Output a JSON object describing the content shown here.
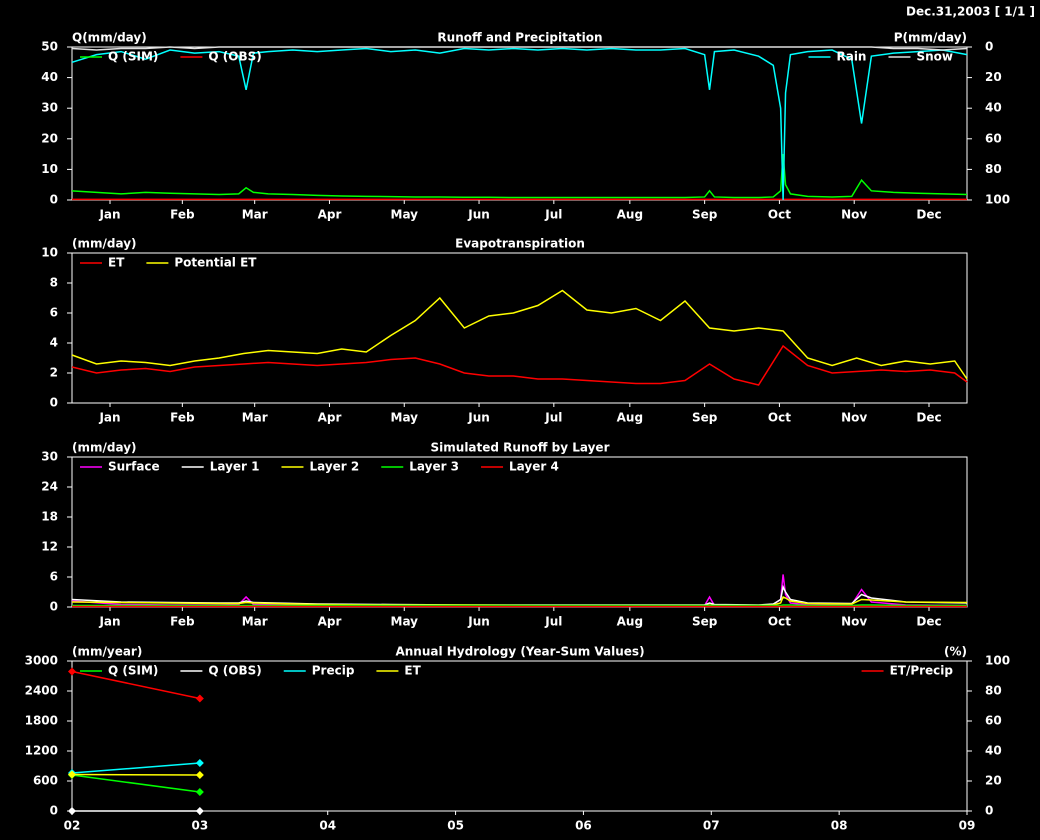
{
  "header": {
    "date": "Dec.31,2003 [ 1/1 ]"
  },
  "chart_data": [
    {
      "type": "line",
      "title": "Runoff and Precipitation",
      "ylabel": "Q(mm/day)",
      "y2label": "P(mm/day)",
      "x": [
        0,
        10,
        20,
        30,
        40,
        50,
        60,
        68,
        71,
        74,
        80,
        90,
        100,
        110,
        120,
        130,
        140,
        150,
        160,
        170,
        180,
        190,
        200,
        210,
        220,
        230,
        240,
        250,
        258,
        260,
        262,
        270,
        280,
        286,
        289,
        290,
        291,
        293,
        300,
        310,
        318,
        322,
        326,
        335,
        345,
        355,
        365
      ],
      "xlim": [
        0,
        365
      ],
      "xticks": [
        {
          "value": 15.5,
          "label": "Jan"
        },
        {
          "value": 45,
          "label": "Feb"
        },
        {
          "value": 74.5,
          "label": "Mar"
        },
        {
          "value": 105,
          "label": "Apr"
        },
        {
          "value": 135.5,
          "label": "May"
        },
        {
          "value": 166,
          "label": "Jun"
        },
        {
          "value": 196.5,
          "label": "Jul"
        },
        {
          "value": 227.5,
          "label": "Aug"
        },
        {
          "value": 258,
          "label": "Sep"
        },
        {
          "value": 288.5,
          "label": "Oct"
        },
        {
          "value": 319,
          "label": "Nov"
        },
        {
          "value": 349.5,
          "label": "Dec"
        }
      ],
      "ylim": [
        0,
        50
      ],
      "yticks": [
        0,
        10,
        20,
        30,
        40,
        50
      ],
      "y2lim": [
        100,
        0
      ],
      "y2ticks": [
        0,
        20,
        40,
        60,
        80,
        100
      ],
      "series": [
        {
          "name": "Q (SIM)",
          "color": "#00ff00",
          "values": [
            3,
            2.5,
            2,
            2.5,
            2.2,
            2,
            1.8,
            2,
            4,
            2.5,
            2,
            1.8,
            1.5,
            1.3,
            1.2,
            1.1,
            1,
            1,
            0.9,
            0.9,
            0.8,
            0.8,
            0.8,
            0.8,
            0.8,
            0.8,
            0.8,
            0.8,
            1,
            3,
            1,
            0.8,
            0.8,
            1,
            3,
            15,
            5,
            2,
            1.2,
            1,
            1.2,
            6.5,
            3,
            2.5,
            2.2,
            2,
            1.8
          ]
        },
        {
          "name": "Q (OBS)",
          "color": "#ff0000",
          "values": [
            0.2,
            0.2,
            0.2,
            0.2,
            0.2,
            0.2,
            0.2,
            0.2,
            0.2,
            0.2,
            0.2,
            0.2,
            0.2,
            0.2,
            0.2,
            0.2,
            0.2,
            0.2,
            0.2,
            0.2,
            0.2,
            0.2,
            0.2,
            0.2,
            0.2,
            0.2,
            0.2,
            0.2,
            0.2,
            0.2,
            0.2,
            0.2,
            0.2,
            0.2,
            0.2,
            0.2,
            0.2,
            0.2,
            0.2,
            0.2,
            0.2,
            0.2,
            0.2,
            0.2,
            0.2,
            0.2,
            0.2
          ]
        },
        {
          "name": "Rain",
          "color": "#00ffff",
          "axis": "y2",
          "values": [
            10,
            5,
            3,
            8,
            2,
            4,
            3,
            6,
            28,
            4,
            3,
            2,
            3,
            2,
            1,
            3,
            2,
            4,
            1,
            2,
            1,
            2,
            1,
            2,
            1,
            2,
            2,
            1,
            5,
            28,
            3,
            2,
            6,
            12,
            40,
            100,
            30,
            5,
            3,
            2,
            8,
            50,
            6,
            4,
            3,
            2,
            5
          ]
        },
        {
          "name": "Snow",
          "color": "#e0e0e0",
          "axis": "y2",
          "values": [
            1,
            2,
            1,
            1,
            0,
            1,
            0,
            0,
            0,
            0,
            0,
            0,
            0,
            0,
            0,
            0,
            0,
            0,
            0,
            0,
            0,
            0,
            0,
            0,
            0,
            0,
            0,
            0,
            0,
            0,
            0,
            0,
            0,
            0,
            0,
            0,
            0,
            0,
            0,
            0,
            0,
            0,
            0,
            1,
            1,
            2,
            1
          ]
        }
      ]
    },
    {
      "type": "line",
      "title": "Evapotranspiration",
      "ylabel": "(mm/day)",
      "x": [
        0,
        10,
        20,
        30,
        40,
        50,
        60,
        70,
        80,
        90,
        100,
        110,
        120,
        130,
        140,
        150,
        160,
        170,
        180,
        190,
        200,
        210,
        220,
        230,
        240,
        250,
        260,
        270,
        280,
        290,
        300,
        310,
        320,
        330,
        340,
        350,
        360,
        365
      ],
      "xlim": [
        0,
        365
      ],
      "xticks": [
        {
          "value": 15.5,
          "label": "Jan"
        },
        {
          "value": 45,
          "label": "Feb"
        },
        {
          "value": 74.5,
          "label": "Mar"
        },
        {
          "value": 105,
          "label": "Apr"
        },
        {
          "value": 135.5,
          "label": "May"
        },
        {
          "value": 166,
          "label": "Jun"
        },
        {
          "value": 196.5,
          "label": "Jul"
        },
        {
          "value": 227.5,
          "label": "Aug"
        },
        {
          "value": 258,
          "label": "Sep"
        },
        {
          "value": 288.5,
          "label": "Oct"
        },
        {
          "value": 319,
          "label": "Nov"
        },
        {
          "value": 349.5,
          "label": "Dec"
        }
      ],
      "ylim": [
        0,
        10
      ],
      "yticks": [
        0,
        2,
        4,
        6,
        8,
        10
      ],
      "series": [
        {
          "name": "ET",
          "color": "#ff0000",
          "values": [
            2.4,
            2.0,
            2.2,
            2.3,
            2.1,
            2.4,
            2.5,
            2.6,
            2.7,
            2.6,
            2.5,
            2.6,
            2.7,
            2.9,
            3.0,
            2.6,
            2.0,
            1.8,
            1.8,
            1.6,
            1.6,
            1.5,
            1.4,
            1.3,
            1.3,
            1.5,
            2.6,
            1.6,
            1.2,
            3.8,
            2.5,
            2.0,
            2.1,
            2.2,
            2.1,
            2.2,
            2.0,
            1.4
          ]
        },
        {
          "name": "Potential ET",
          "color": "#ffff00",
          "values": [
            3.2,
            2.6,
            2.8,
            2.7,
            2.5,
            2.8,
            3.0,
            3.3,
            3.5,
            3.4,
            3.3,
            3.6,
            3.4,
            4.5,
            5.5,
            7.0,
            5.0,
            5.8,
            6.0,
            6.5,
            7.5,
            6.2,
            6.0,
            6.3,
            5.5,
            6.8,
            5.0,
            4.8,
            5.0,
            4.8,
            3.0,
            2.5,
            3.0,
            2.5,
            2.8,
            2.6,
            2.8,
            1.6
          ]
        }
      ]
    },
    {
      "type": "line",
      "title": "Simulated Runoff by Layer",
      "ylabel": "(mm/day)",
      "x": [
        0,
        20,
        40,
        60,
        68,
        71,
        74,
        100,
        130,
        160,
        190,
        220,
        250,
        258,
        260,
        262,
        280,
        286,
        289,
        290,
        291,
        293,
        300,
        318,
        322,
        326,
        340,
        365
      ],
      "xlim": [
        0,
        365
      ],
      "xticks": [
        {
          "value": 15.5,
          "label": "Jan"
        },
        {
          "value": 45,
          "label": "Feb"
        },
        {
          "value": 74.5,
          "label": "Mar"
        },
        {
          "value": 105,
          "label": "Apr"
        },
        {
          "value": 135.5,
          "label": "May"
        },
        {
          "value": 166,
          "label": "Jun"
        },
        {
          "value": 196.5,
          "label": "Jul"
        },
        {
          "value": 227.5,
          "label": "Aug"
        },
        {
          "value": 258,
          "label": "Sep"
        },
        {
          "value": 288.5,
          "label": "Oct"
        },
        {
          "value": 319,
          "label": "Nov"
        },
        {
          "value": 349.5,
          "label": "Dec"
        }
      ],
      "ylim": [
        0,
        30
      ],
      "yticks": [
        0,
        6,
        12,
        18,
        24,
        30
      ],
      "series": [
        {
          "name": "Surface",
          "color": "#ff00ff",
          "values": [
            1.2,
            0.5,
            0.4,
            0.4,
            0.5,
            2.0,
            0.5,
            0.3,
            0.3,
            0.3,
            0.2,
            0.2,
            0.2,
            0.3,
            2.0,
            0.3,
            0.2,
            0.5,
            1.5,
            6.5,
            2.5,
            0.8,
            0.4,
            0.5,
            3.5,
            1.0,
            0.4,
            0.3
          ]
        },
        {
          "name": "Layer 1",
          "color": "#ffffff",
          "values": [
            1.5,
            1.0,
            0.9,
            0.8,
            0.8,
            1.2,
            0.9,
            0.6,
            0.5,
            0.4,
            0.4,
            0.4,
            0.4,
            0.4,
            0.8,
            0.5,
            0.4,
            0.6,
            1.5,
            4.0,
            3.0,
            1.5,
            0.8,
            0.7,
            2.5,
            1.8,
            1.0,
            0.8
          ]
        },
        {
          "name": "Layer 2",
          "color": "#ffff00",
          "values": [
            1.0,
            0.9,
            0.8,
            0.7,
            0.7,
            0.9,
            0.8,
            0.5,
            0.4,
            0.4,
            0.3,
            0.3,
            0.3,
            0.3,
            0.4,
            0.3,
            0.3,
            0.4,
            0.8,
            2.0,
            1.8,
            1.2,
            0.7,
            0.6,
            1.5,
            1.4,
            1.0,
            0.9
          ]
        },
        {
          "name": "Layer 3",
          "color": "#00ff00",
          "values": [
            0.3,
            0.3,
            0.3,
            0.3,
            0.3,
            0.3,
            0.3,
            0.3,
            0.3,
            0.3,
            0.3,
            0.3,
            0.3,
            0.3,
            0.3,
            0.3,
            0.3,
            0.3,
            0.3,
            0.4,
            0.4,
            0.4,
            0.3,
            0.3,
            0.4,
            0.4,
            0.3,
            0.3
          ]
        },
        {
          "name": "Layer 4",
          "color": "#ff0000",
          "values": [
            0.1,
            0.1,
            0.1,
            0.1,
            0.1,
            0.1,
            0.1,
            0.1,
            0.1,
            0.1,
            0.1,
            0.1,
            0.1,
            0.1,
            0.1,
            0.1,
            0.1,
            0.1,
            0.1,
            0.1,
            0.1,
            0.1,
            0.1,
            0.1,
            0.1,
            0.1,
            0.1,
            0.1
          ]
        }
      ]
    },
    {
      "type": "line",
      "title": "Annual Hydrology (Year-Sum Values)",
      "ylabel": "(mm/year)",
      "y2label": "(%)",
      "markers": true,
      "x": [
        2,
        3
      ],
      "xlim": [
        2,
        9
      ],
      "xticks": [
        {
          "value": 2,
          "label": "02"
        },
        {
          "value": 3,
          "label": "03"
        },
        {
          "value": 4,
          "label": "04"
        },
        {
          "value": 5,
          "label": "05"
        },
        {
          "value": 6,
          "label": "06"
        },
        {
          "value": 7,
          "label": "07"
        },
        {
          "value": 8,
          "label": "08"
        },
        {
          "value": 9,
          "label": "09"
        }
      ],
      "ylim": [
        0,
        3000
      ],
      "yticks": [
        0,
        600,
        1200,
        1800,
        2400,
        3000
      ],
      "y2lim": [
        0,
        100
      ],
      "y2ticks": [
        0,
        20,
        40,
        60,
        80,
        100
      ],
      "series": [
        {
          "name": "Q (SIM)",
          "color": "#00ff00",
          "values": [
            720,
            380
          ]
        },
        {
          "name": "Q (OBS)",
          "color": "#ffffff",
          "values": [
            0,
            0
          ]
        },
        {
          "name": "Precip",
          "color": "#00ffff",
          "values": [
            760,
            960
          ]
        },
        {
          "name": "ET",
          "color": "#ffff00",
          "values": [
            730,
            720
          ]
        },
        {
          "name": "ET/Precip",
          "color": "#ff0000",
          "axis": "y2",
          "values": [
            93,
            75
          ]
        }
      ]
    }
  ]
}
